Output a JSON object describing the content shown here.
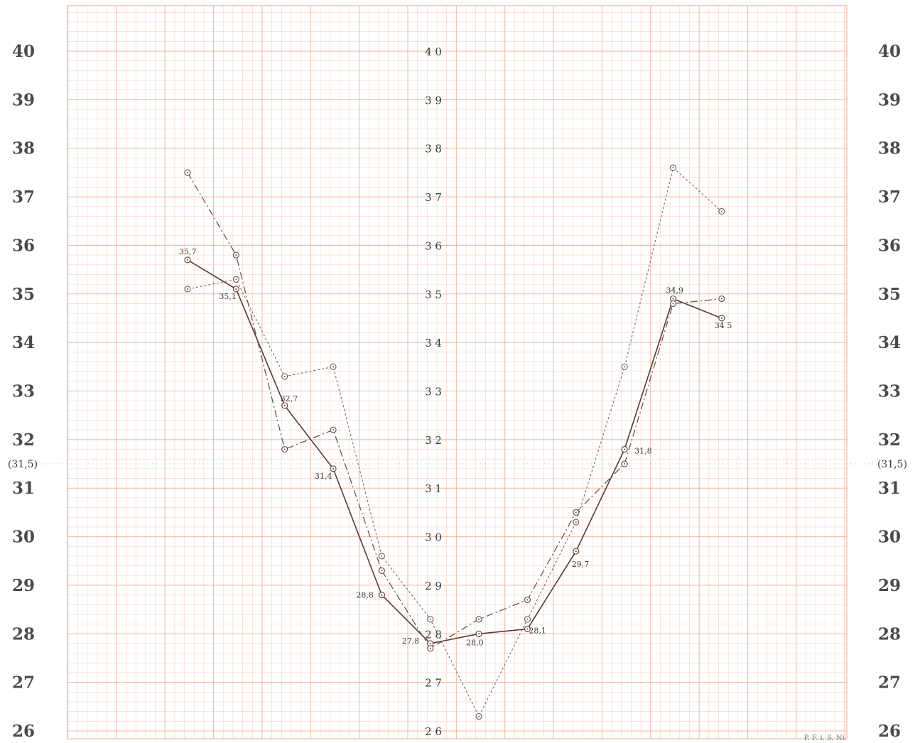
{
  "chart_data": {
    "type": "line",
    "title": "",
    "xlabel": "",
    "ylabel": "",
    "ylim": [
      26,
      40
    ],
    "y_ticks": [
      "26",
      "27",
      "28",
      "29",
      "30",
      "31",
      "32",
      "33",
      "34",
      "35",
      "36",
      "37",
      "38",
      "39",
      "40"
    ],
    "reference_line": {
      "value": 31.5,
      "label": "(31,5)"
    },
    "grid": true,
    "legend": "none",
    "x": [
      1,
      2,
      3,
      4,
      5,
      6,
      7,
      8,
      9,
      10,
      11,
      12
    ],
    "series": [
      {
        "style": "solid",
        "color": "#5a3a32",
        "values": [
          35.7,
          35.1,
          32.7,
          31.4,
          28.8,
          27.8,
          28.0,
          28.1,
          29.7,
          31.8,
          34.9,
          34.5
        ]
      },
      {
        "style": "dashdot",
        "color": "#5a4a44",
        "values": [
          37.5,
          35.8,
          31.8,
          32.2,
          29.3,
          27.7,
          28.3,
          28.7,
          30.5,
          31.5,
          34.8,
          34.9
        ]
      },
      {
        "style": "dotted",
        "color": "#6a5a54",
        "values": [
          35.1,
          35.3,
          33.3,
          33.5,
          29.6,
          28.3,
          26.3,
          28.3,
          30.3,
          33.5,
          37.6,
          36.7
        ]
      }
    ],
    "data_labels": [
      {
        "series": 0,
        "index": 0,
        "text": "35,7"
      },
      {
        "series": 0,
        "index": 1,
        "text": "35,1"
      },
      {
        "series": 0,
        "index": 2,
        "text": "32,7"
      },
      {
        "series": 0,
        "index": 3,
        "text": "31,4"
      },
      {
        "series": 0,
        "index": 4,
        "text": "28,8"
      },
      {
        "series": 0,
        "index": 5,
        "text": "27,8"
      },
      {
        "series": 0,
        "index": 6,
        "text": "28,0"
      },
      {
        "series": 0,
        "index": 7,
        "text": "28,1"
      },
      {
        "series": 0,
        "index": 8,
        "text": "29,7"
      },
      {
        "series": 0,
        "index": 9,
        "text": "31,8"
      },
      {
        "series": 0,
        "index": 10,
        "text": "34,9"
      },
      {
        "series": 0,
        "index": 11,
        "text": "34 5"
      }
    ],
    "signature": "P. F. i. S. Ni."
  }
}
